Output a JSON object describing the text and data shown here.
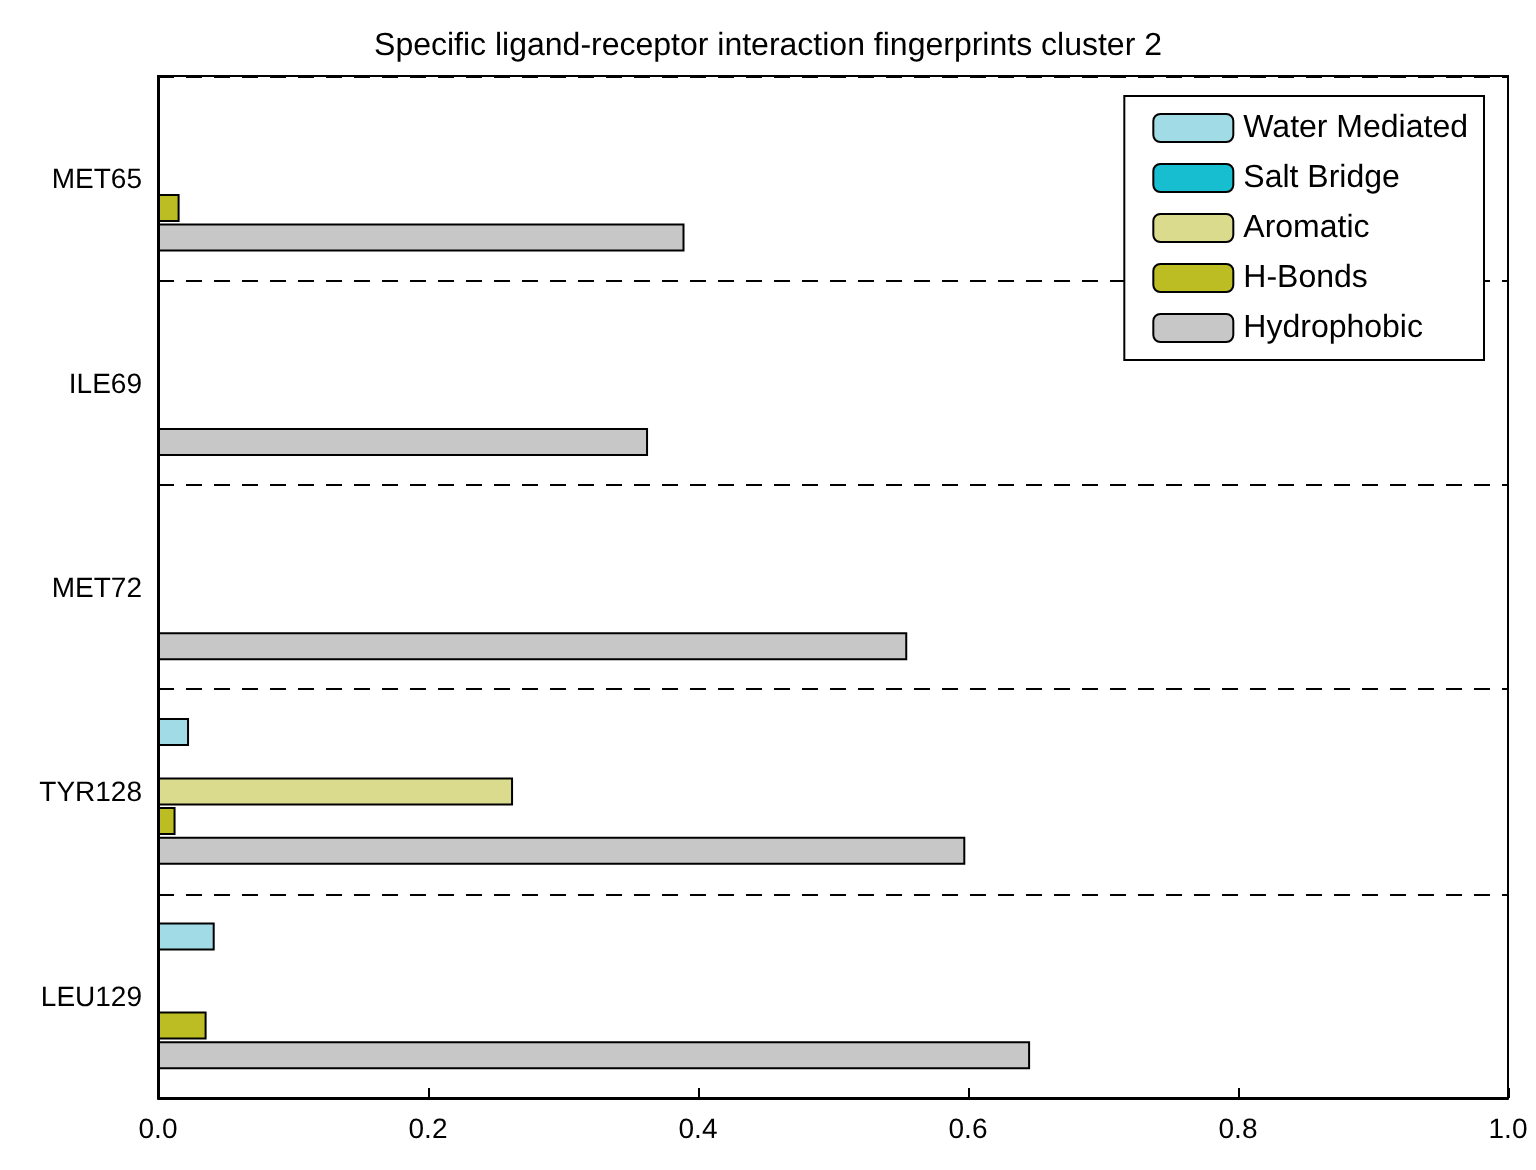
{
  "chart_data": {
    "type": "bar",
    "orientation": "horizontal",
    "title": "Specific ligand-receptor interaction fingerprints cluster 2",
    "categories": [
      "MET65",
      "ILE69",
      "MET72",
      "TYR128",
      "LEU129"
    ],
    "series": [
      {
        "name": "Water Mediated",
        "color": "#a0dbe6",
        "values": [
          null,
          0,
          0,
          0.023,
          0.042
        ]
      },
      {
        "name": "Salt Bridge",
        "color": "#17becf",
        "values": [
          0,
          0,
          0,
          0,
          0
        ]
      },
      {
        "name": "Aromatic",
        "color": "#dbdb8d",
        "values": [
          0,
          0,
          0,
          0.263,
          0
        ]
      },
      {
        "name": "H-Bonds",
        "color": "#bcbd22",
        "values": [
          0.016,
          0,
          0,
          0.013,
          0.036
        ]
      },
      {
        "name": "Hydrophobic",
        "color": "#c7c7c7",
        "values": [
          0.39,
          0.363,
          0.555,
          0.598,
          0.646
        ]
      }
    ],
    "xlim": [
      0,
      1
    ],
    "xticks": [
      {
        "value": 0,
        "label": "0.0"
      },
      {
        "value": 0.2,
        "label": "0.2"
      },
      {
        "value": 0.4,
        "label": "0.4"
      },
      {
        "value": 0.6,
        "label": "0.6"
      },
      {
        "value": 0.8,
        "label": "0.8"
      },
      {
        "value": 1,
        "label": "1.0"
      }
    ],
    "grid": "y",
    "legend": "top right"
  }
}
